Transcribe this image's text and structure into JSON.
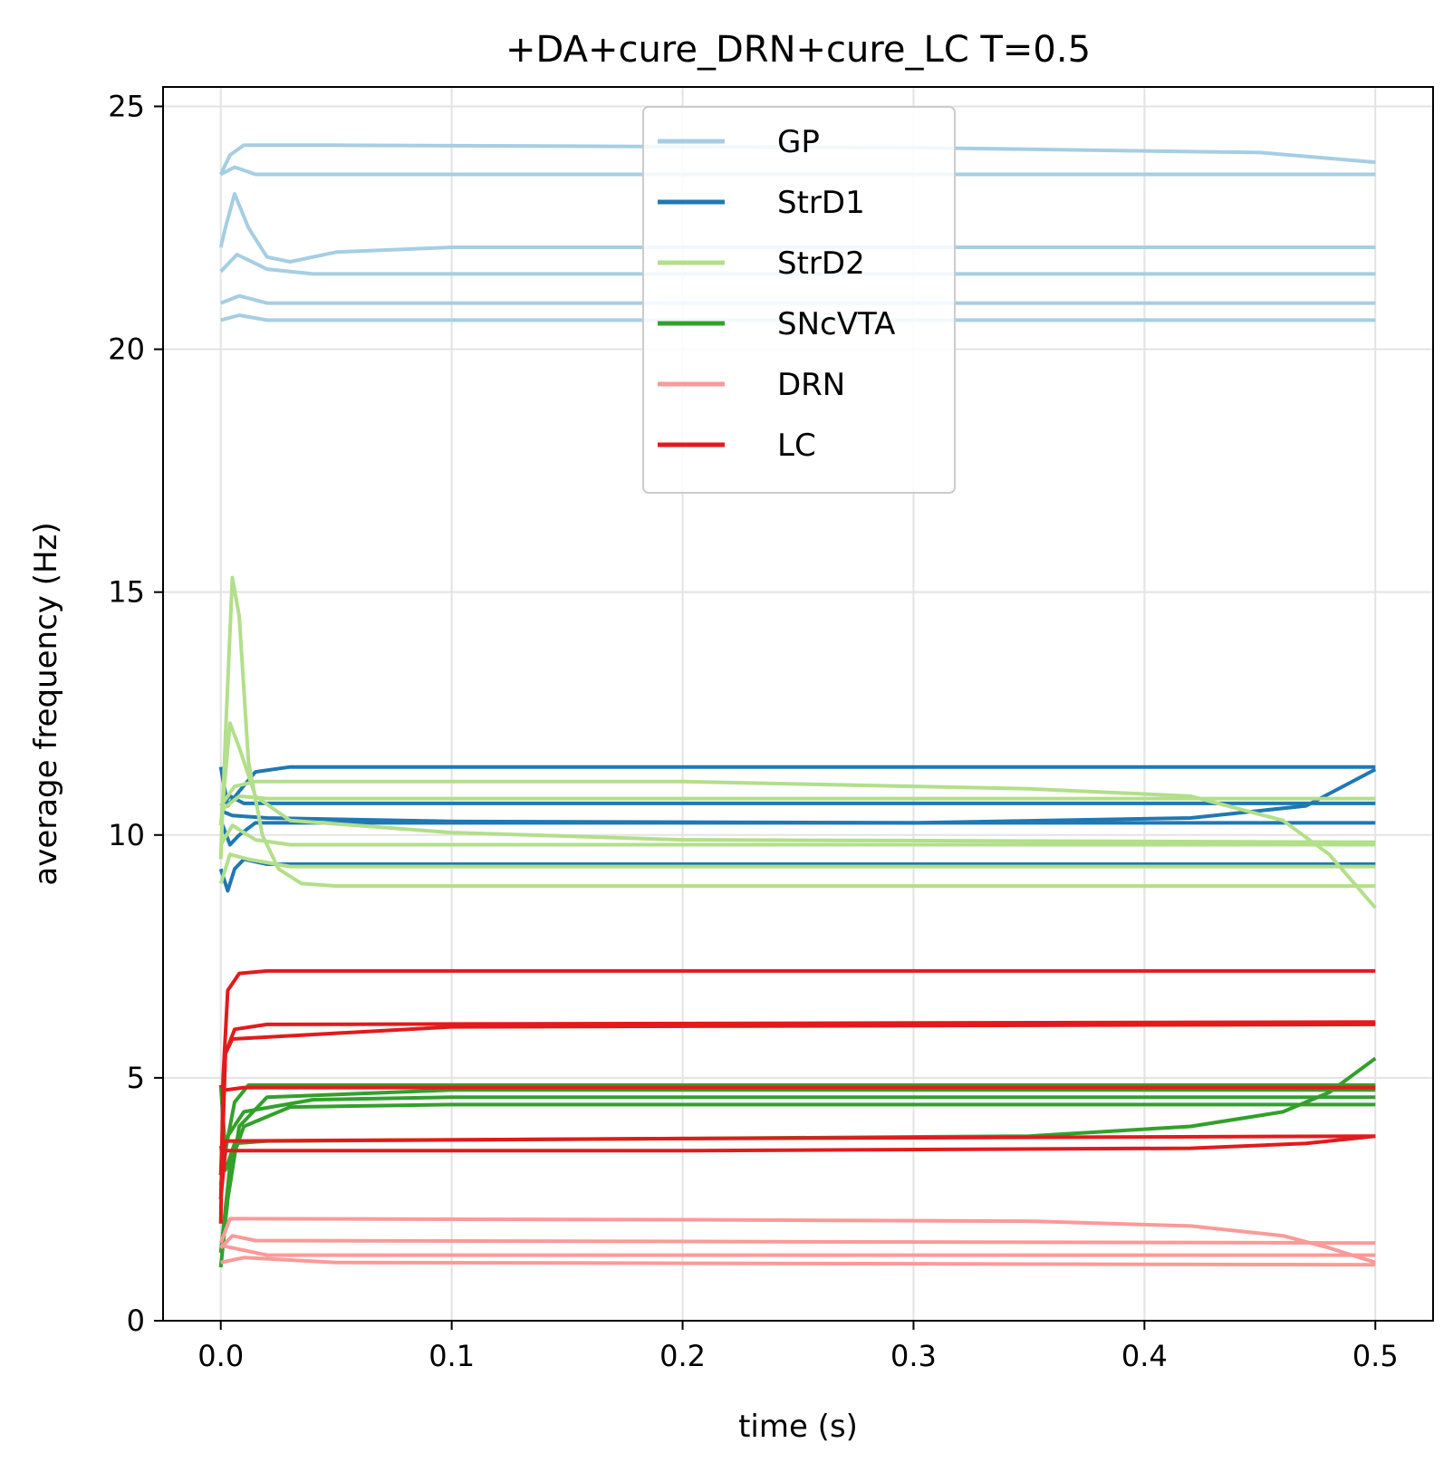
{
  "chart_data": {
    "type": "line",
    "title": "+DA+cure_DRN+cure_LC T=0.5",
    "xlabel": "time (s)",
    "ylabel": "average frequency (Hz)",
    "xlim": [
      -0.025,
      0.525
    ],
    "ylim": [
      0,
      25.4
    ],
    "xticks": [
      "0.0",
      "0.1",
      "0.2",
      "0.3",
      "0.4",
      "0.5"
    ],
    "yticks": [
      "0",
      "5",
      "10",
      "15",
      "20",
      "25"
    ],
    "grid": true,
    "legend": {
      "position": "upper-center",
      "entries": [
        {
          "name": "GP",
          "color": "#a6cee3"
        },
        {
          "name": "StrD1",
          "color": "#1f78b4"
        },
        {
          "name": "StrD2",
          "color": "#b2df8a"
        },
        {
          "name": "SNcVTA",
          "color": "#33a02c"
        },
        {
          "name": "DRN",
          "color": "#fb9a99"
        },
        {
          "name": "LC",
          "color": "#e31a1c"
        }
      ]
    },
    "series": [
      {
        "name": "GP",
        "color": "#a6cee3",
        "lines": [
          [
            [
              0,
              23.6
            ],
            [
              0.004,
              24.0
            ],
            [
              0.01,
              24.2
            ],
            [
              0.05,
              24.2
            ],
            [
              0.3,
              24.15
            ],
            [
              0.45,
              24.05
            ],
            [
              0.5,
              23.85
            ]
          ],
          [
            [
              0,
              23.6
            ],
            [
              0.006,
              23.75
            ],
            [
              0.015,
              23.6
            ],
            [
              0.05,
              23.6
            ],
            [
              0.5,
              23.6
            ]
          ],
          [
            [
              0,
              22.1
            ],
            [
              0.002,
              22.5
            ],
            [
              0.006,
              23.2
            ],
            [
              0.012,
              22.5
            ],
            [
              0.02,
              21.9
            ],
            [
              0.03,
              21.8
            ],
            [
              0.05,
              22.0
            ],
            [
              0.1,
              22.1
            ],
            [
              0.5,
              22.1
            ]
          ],
          [
            [
              0,
              21.6
            ],
            [
              0.007,
              21.95
            ],
            [
              0.02,
              21.65
            ],
            [
              0.04,
              21.55
            ],
            [
              0.5,
              21.55
            ]
          ],
          [
            [
              0,
              20.95
            ],
            [
              0.008,
              21.1
            ],
            [
              0.02,
              20.95
            ],
            [
              0.5,
              20.95
            ]
          ],
          [
            [
              0,
              20.6
            ],
            [
              0.008,
              20.7
            ],
            [
              0.02,
              20.6
            ],
            [
              0.5,
              20.6
            ]
          ]
        ]
      },
      {
        "name": "StrD1",
        "color": "#1f78b4",
        "lines": [
          [
            [
              0,
              11.4
            ],
            [
              0.003,
              10.6
            ],
            [
              0.008,
              10.9
            ],
            [
              0.015,
              11.3
            ],
            [
              0.03,
              11.4
            ],
            [
              0.5,
              11.4
            ]
          ],
          [
            [
              0,
              10.6
            ],
            [
              0.004,
              10.8
            ],
            [
              0.01,
              10.65
            ],
            [
              0.5,
              10.65
            ]
          ],
          [
            [
              0,
              10.5
            ],
            [
              0.005,
              10.4
            ],
            [
              0.02,
              10.35
            ],
            [
              0.1,
              10.28
            ],
            [
              0.3,
              10.25
            ],
            [
              0.42,
              10.35
            ],
            [
              0.47,
              10.6
            ],
            [
              0.5,
              11.35
            ]
          ],
          [
            [
              0,
              10.3
            ],
            [
              0.004,
              9.8
            ],
            [
              0.008,
              10.0
            ],
            [
              0.015,
              10.25
            ],
            [
              0.5,
              10.25
            ]
          ],
          [
            [
              0,
              9.3
            ],
            [
              0.003,
              8.85
            ],
            [
              0.006,
              9.3
            ],
            [
              0.01,
              9.5
            ],
            [
              0.02,
              9.4
            ],
            [
              0.5,
              9.4
            ]
          ]
        ]
      },
      {
        "name": "StrD2",
        "color": "#b2df8a",
        "lines": [
          [
            [
              0,
              9.5
            ],
            [
              0.002,
              12.0
            ],
            [
              0.005,
              15.3
            ],
            [
              0.008,
              14.5
            ],
            [
              0.012,
              11.5
            ],
            [
              0.018,
              10.0
            ],
            [
              0.025,
              9.3
            ],
            [
              0.035,
              9.0
            ],
            [
              0.05,
              8.95
            ],
            [
              0.5,
              8.95
            ]
          ],
          [
            [
              0,
              10.2
            ],
            [
              0.004,
              12.3
            ],
            [
              0.008,
              11.8
            ],
            [
              0.015,
              10.8
            ],
            [
              0.03,
              10.3
            ],
            [
              0.1,
              10.05
            ],
            [
              0.2,
              9.9
            ],
            [
              0.5,
              9.85
            ]
          ],
          [
            [
              0,
              10.6
            ],
            [
              0.006,
              11.0
            ],
            [
              0.015,
              11.1
            ],
            [
              0.2,
              11.1
            ],
            [
              0.35,
              10.95
            ],
            [
              0.42,
              10.8
            ],
            [
              0.46,
              10.3
            ],
            [
              0.48,
              9.6
            ],
            [
              0.5,
              8.5
            ]
          ],
          [
            [
              0,
              10.5
            ],
            [
              0.008,
              10.8
            ],
            [
              0.02,
              10.75
            ],
            [
              0.5,
              10.75
            ]
          ],
          [
            [
              0,
              9.8
            ],
            [
              0.005,
              10.2
            ],
            [
              0.015,
              9.9
            ],
            [
              0.03,
              9.8
            ],
            [
              0.5,
              9.8
            ]
          ],
          [
            [
              0,
              9.0
            ],
            [
              0.004,
              9.6
            ],
            [
              0.012,
              9.5
            ],
            [
              0.03,
              9.35
            ],
            [
              0.5,
              9.35
            ]
          ]
        ]
      },
      {
        "name": "SNcVTA",
        "color": "#33a02c",
        "lines": [
          [
            [
              0,
              4.85
            ],
            [
              0.002,
              3.5
            ],
            [
              0.006,
              4.5
            ],
            [
              0.012,
              4.85
            ],
            [
              0.5,
              4.85
            ]
          ],
          [
            [
              0,
              1.1
            ],
            [
              0.003,
              2.5
            ],
            [
              0.008,
              4.0
            ],
            [
              0.02,
              4.6
            ],
            [
              0.1,
              4.75
            ],
            [
              0.5,
              4.75
            ]
          ],
          [
            [
              0,
              2.8
            ],
            [
              0.003,
              3.8
            ],
            [
              0.01,
              4.3
            ],
            [
              0.04,
              4.55
            ],
            [
              0.1,
              4.6
            ],
            [
              0.5,
              4.6
            ]
          ],
          [
            [
              0,
              3.6
            ],
            [
              0.002,
              3.1
            ],
            [
              0.006,
              3.65
            ],
            [
              0.02,
              3.7
            ],
            [
              0.2,
              3.75
            ],
            [
              0.35,
              3.8
            ],
            [
              0.42,
              4.0
            ],
            [
              0.46,
              4.3
            ],
            [
              0.48,
              4.7
            ],
            [
              0.5,
              5.4
            ]
          ],
          [
            [
              0,
              1.4
            ],
            [
              0.004,
              3.2
            ],
            [
              0.01,
              4.0
            ],
            [
              0.03,
              4.4
            ],
            [
              0.1,
              4.45
            ],
            [
              0.5,
              4.45
            ]
          ]
        ]
      },
      {
        "name": "DRN",
        "color": "#fb9a99",
        "lines": [
          [
            [
              0,
              1.6
            ],
            [
              0.004,
              2.1
            ],
            [
              0.01,
              2.1
            ],
            [
              0.2,
              2.08
            ],
            [
              0.35,
              2.05
            ],
            [
              0.42,
              1.95
            ],
            [
              0.46,
              1.75
            ],
            [
              0.48,
              1.5
            ],
            [
              0.5,
              1.2
            ]
          ],
          [
            [
              0,
              1.5
            ],
            [
              0.005,
              1.75
            ],
            [
              0.015,
              1.65
            ],
            [
              0.5,
              1.6
            ]
          ],
          [
            [
              0,
              1.55
            ],
            [
              0.01,
              1.45
            ],
            [
              0.02,
              1.35
            ],
            [
              0.5,
              1.35
            ]
          ],
          [
            [
              0,
              1.2
            ],
            [
              0.01,
              1.3
            ],
            [
              0.05,
              1.2
            ],
            [
              0.5,
              1.15
            ]
          ]
        ]
      },
      {
        "name": "LC",
        "color": "#e31a1c",
        "lines": [
          [
            [
              0,
              2.0
            ],
            [
              0.001,
              5.0
            ],
            [
              0.003,
              6.8
            ],
            [
              0.008,
              7.15
            ],
            [
              0.02,
              7.2
            ],
            [
              0.5,
              7.2
            ]
          ],
          [
            [
              0,
              2.5
            ],
            [
              0.002,
              5.5
            ],
            [
              0.006,
              6.0
            ],
            [
              0.02,
              6.1
            ],
            [
              0.5,
              6.15
            ]
          ],
          [
            [
              0,
              3.0
            ],
            [
              0.002,
              5.5
            ],
            [
              0.005,
              5.8
            ],
            [
              0.1,
              6.05
            ],
            [
              0.5,
              6.1
            ]
          ],
          [
            [
              0,
              4.85
            ],
            [
              0.002,
              4.75
            ],
            [
              0.01,
              4.8
            ],
            [
              0.5,
              4.8
            ]
          ],
          [
            [
              0,
              3.0
            ],
            [
              0.002,
              3.7
            ],
            [
              0.2,
              3.75
            ],
            [
              0.5,
              3.8
            ]
          ],
          [
            [
              0,
              2.5
            ],
            [
              0.002,
              3.5
            ],
            [
              0.2,
              3.5
            ],
            [
              0.42,
              3.55
            ],
            [
              0.47,
              3.65
            ],
            [
              0.5,
              3.8
            ]
          ]
        ]
      }
    ]
  }
}
